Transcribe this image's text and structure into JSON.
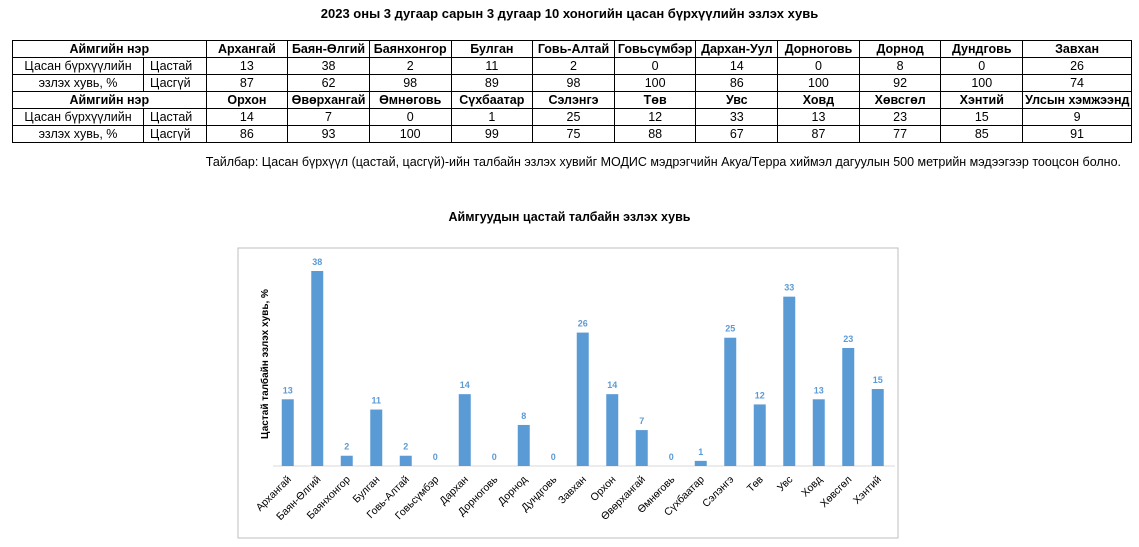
{
  "title": "2023 оны 3 дугаар сарын 3 дугаар 10 хоногийн цасан бүрхүүлийн эзлэх хувь",
  "table": {
    "header_label": "Аймгийн нэр",
    "row_label": [
      "Цасан бүрхүүлийн",
      "эзлэх хувь, %"
    ],
    "snow_label": "Цастай",
    "nosnow_label": "Цасгүй",
    "blocks": [
      {
        "names": [
          "Архангай",
          "Баян-Өлгий",
          "Баянхонгор",
          "Булган",
          "Говь-Алтай",
          "Говьсүмбэр",
          "Дархан-Уул",
          "Дорноговь",
          "Дорнод",
          "Дундговь",
          "Завхан"
        ],
        "snow": [
          "13",
          "38",
          "2",
          "11",
          "2",
          "0",
          "14",
          "0",
          "8",
          "0",
          "26"
        ],
        "nosnow": [
          "87",
          "62",
          "98",
          "89",
          "98",
          "100",
          "86",
          "100",
          "92",
          "100",
          "74"
        ]
      },
      {
        "names": [
          "Орхон",
          "Өвөрхангай",
          "Өмнөговь",
          "Сүхбаатар",
          "Сэлэнгэ",
          "Төв",
          "Увс",
          "Ховд",
          "Хөвсгөл",
          "Хэнтий",
          "Улсын хэмжээнд"
        ],
        "snow": [
          "14",
          "7",
          "0",
          "1",
          "25",
          "12",
          "33",
          "13",
          "23",
          "15",
          "9"
        ],
        "nosnow": [
          "86",
          "93",
          "100",
          "99",
          "75",
          "88",
          "67",
          "87",
          "77",
          "85",
          "91"
        ]
      }
    ]
  },
  "note": "Тайлбар: Цасан бүрхүүл (цастай, цасгүй)-ийн талбайн эзлэх хувийг МОДИС мэдрэгчийн Акуа/Терра хиймэл дагуулын 500 метрийн мэдээгээр тооцсон болно.",
  "colors": {
    "bar": "#5b9bd5",
    "label": "#5b9bd5"
  },
  "chart_data": {
    "type": "bar",
    "title": "Аймгуудын цастай талбайн эзлэх хувь",
    "ylabel": "Цастай талбайн эзлэх хувь, %",
    "xlabel": "",
    "ylim": [
      0,
      40
    ],
    "grid": false,
    "legend": "none",
    "categories": [
      "Архангай",
      "Баян-Өлгий",
      "Баянхонгор",
      "Булган",
      "Говь-Алтай",
      "Говьсүмбэр",
      "Дархан",
      "Дорноговь",
      "Дорнод",
      "Дундговь",
      "Завхан",
      "Орхон",
      "Өвөрхангай",
      "Өмнөговь",
      "Сүхбаатар",
      "Сэлэнгэ",
      "Төв",
      "Увс",
      "Ховд",
      "Хөвсгөл",
      "Хэнтий"
    ],
    "values": [
      13,
      38,
      2,
      11,
      2,
      0,
      14,
      0,
      8,
      0,
      26,
      14,
      7,
      0,
      1,
      25,
      12,
      33,
      13,
      23,
      15
    ]
  }
}
